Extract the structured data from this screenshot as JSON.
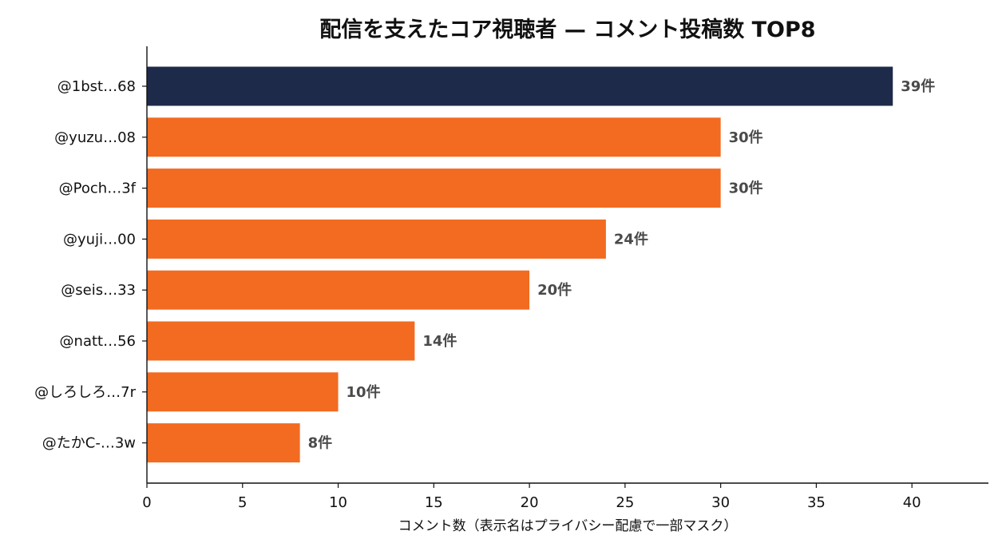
{
  "chart_data": {
    "type": "bar",
    "orientation": "horizontal",
    "title": "配信を支えたコア視聴者 — コメント投稿数 TOP8",
    "xlabel": "コメント数（表示名はプライバシー配慮で一部マスク）",
    "ylabel": "",
    "categories": [
      "@1bst…68",
      "@yuzu…08",
      "@Poch…3f",
      "@yuji…00",
      "@seis…33",
      "@natt…56",
      "@しろしろ…7r",
      "@たかC-…3w"
    ],
    "values": [
      39,
      30,
      30,
      24,
      20,
      14,
      10,
      8
    ],
    "value_labels": [
      "39件",
      "30件",
      "30件",
      "24件",
      "20件",
      "14件",
      "10件",
      "8件"
    ],
    "xlim": [
      0,
      44
    ],
    "xticks": [
      "0",
      "5",
      "10",
      "15",
      "20",
      "25",
      "30",
      "35",
      "40"
    ],
    "grid": false,
    "colors": {
      "top_bar": "#1e2a4a",
      "bar": "#f26b21",
      "value_label": "#4a4a4a"
    }
  }
}
